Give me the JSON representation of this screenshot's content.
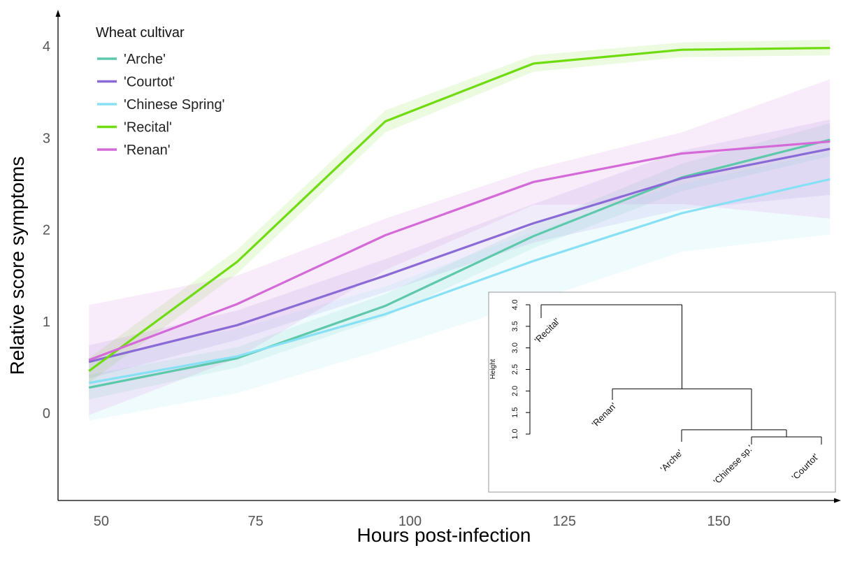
{
  "chart_data": [
    {
      "type": "line",
      "title": "",
      "xlabel": "Hours post-infection",
      "ylabel": "Relative score symptoms",
      "xlim": [
        43,
        169
      ],
      "ylim": [
        -0.95,
        4.35
      ],
      "x_ticks": [
        50,
        75,
        100,
        125,
        150
      ],
      "y_ticks": [
        0,
        1,
        2,
        3,
        4
      ],
      "x": [
        48,
        72,
        96,
        120,
        144,
        168
      ],
      "grid": false,
      "legend": {
        "title": "Wheat cultivar",
        "placement": "top-left"
      },
      "series": [
        {
          "name": "'Arche'",
          "color": "#5ec8aa",
          "values": [
            0.28,
            0.6,
            1.17,
            1.93,
            2.57,
            2.98
          ],
          "lower": [
            0.15,
            0.5,
            1.05,
            1.8,
            2.42,
            2.8
          ],
          "upper": [
            0.42,
            0.72,
            1.3,
            2.05,
            2.72,
            3.16
          ]
        },
        {
          "name": "'Courtot'",
          "color": "#8a6ad6",
          "values": [
            0.56,
            0.96,
            1.5,
            2.07,
            2.56,
            2.88
          ],
          "lower": [
            0.38,
            0.8,
            1.32,
            1.86,
            2.22,
            2.38
          ],
          "upper": [
            0.74,
            1.12,
            1.68,
            2.28,
            2.86,
            3.2
          ]
        },
        {
          "name": "'Chinese Spring'",
          "color": "#88e0f4",
          "values": [
            0.33,
            0.62,
            1.08,
            1.66,
            2.18,
            2.55
          ],
          "lower": [
            -0.08,
            0.22,
            0.7,
            1.22,
            1.76,
            1.95
          ],
          "upper": [
            0.6,
            0.92,
            1.38,
            1.98,
            2.5,
            2.85
          ]
        },
        {
          "name": "'Recital'",
          "color": "#6fdc10",
          "values": [
            0.46,
            1.65,
            3.18,
            3.81,
            3.96,
            3.98
          ],
          "lower": [
            0.33,
            1.52,
            3.06,
            3.72,
            3.88,
            3.9
          ],
          "upper": [
            0.6,
            1.78,
            3.3,
            3.9,
            4.04,
            4.07
          ]
        },
        {
          "name": "'Renan'",
          "color": "#d46ad8",
          "values": [
            0.58,
            1.19,
            1.94,
            2.52,
            2.83,
            2.96
          ],
          "lower": [
            -0.02,
            0.6,
            1.56,
            2.27,
            2.28,
            2.12
          ],
          "upper": [
            1.18,
            1.5,
            2.12,
            2.66,
            3.06,
            3.64
          ]
        }
      ]
    },
    {
      "type": "dendrogram",
      "ylabel": "Height",
      "ylim": [
        1.0,
        4.0
      ],
      "y_ticks": [
        1.0,
        1.5,
        2.0,
        2.5,
        3.0,
        3.5,
        4.0
      ],
      "leaves": [
        "'Recital'",
        "'Renan'",
        "'Arche'",
        "'Chinese sp.'",
        "'Courtot'"
      ],
      "merges": [
        {
          "left": "'Chinese sp.'",
          "right": "'Courtot'",
          "height": 1.0
        },
        {
          "left": "'Arche'",
          "right": "'Chinese sp.' + 'Courtot'",
          "height": 1.1
        },
        {
          "left": "'Renan'",
          "right": "'Arche' + 'Chinese sp.' + 'Courtot'",
          "height": 2.05
        },
        {
          "left": "'Recital'",
          "right": "all others",
          "height": 4.0
        }
      ]
    }
  ]
}
